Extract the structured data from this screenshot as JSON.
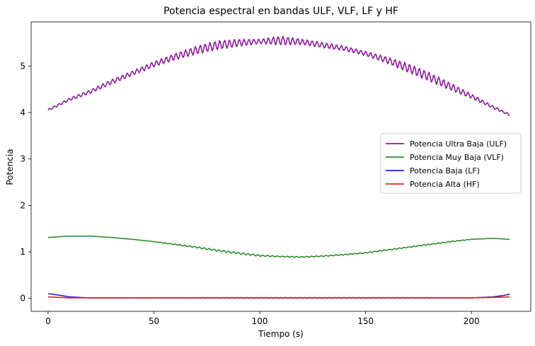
{
  "chart_data": {
    "type": "line",
    "title": "Potencia espectral en bandas ULF, VLF, LF y HF",
    "xlabel": "Tiempo (s)",
    "ylabel": "Potencia",
    "xlim": [
      -8,
      228
    ],
    "ylim": [
      -0.28,
      5.95
    ],
    "xticks": [
      0,
      50,
      100,
      150,
      200
    ],
    "yticks": [
      0,
      1,
      2,
      3,
      4,
      5
    ],
    "grid": false,
    "legend_position": "center-right",
    "series": [
      {
        "name": "Potencia Ultra Baja (ULF)",
        "color": "#8B1A9B",
        "x": [
          0,
          10,
          20,
          30,
          40,
          50,
          60,
          70,
          80,
          90,
          100,
          110,
          120,
          130,
          140,
          150,
          160,
          170,
          180,
          190,
          200,
          210,
          218
        ],
        "y": [
          4.05,
          4.28,
          4.45,
          4.66,
          4.85,
          5.04,
          5.2,
          5.34,
          5.45,
          5.5,
          5.53,
          5.55,
          5.52,
          5.45,
          5.38,
          5.27,
          5.13,
          4.96,
          4.77,
          4.56,
          4.35,
          4.12,
          3.95
        ],
        "oscillation": [
          0.02,
          0.03,
          0.04,
          0.05,
          0.05,
          0.06,
          0.07,
          0.09,
          0.1,
          0.08,
          0.05,
          0.1,
          0.06,
          0.06,
          0.05,
          0.05,
          0.07,
          0.1,
          0.1,
          0.08,
          0.05,
          0.03,
          0.02
        ]
      },
      {
        "name": "Potencia Muy Baja (VLF)",
        "color": "#2E8B2E",
        "x": [
          0,
          10,
          20,
          30,
          40,
          50,
          60,
          70,
          80,
          90,
          100,
          110,
          120,
          130,
          140,
          150,
          160,
          170,
          180,
          190,
          200,
          210,
          218
        ],
        "y": [
          1.31,
          1.34,
          1.34,
          1.31,
          1.27,
          1.22,
          1.16,
          1.1,
          1.03,
          0.97,
          0.92,
          0.9,
          0.89,
          0.91,
          0.94,
          0.98,
          1.04,
          1.1,
          1.16,
          1.22,
          1.27,
          1.29,
          1.27
        ],
        "oscillation": [
          0.0,
          0.0,
          0.0,
          0.0,
          0.0,
          0.005,
          0.01,
          0.015,
          0.02,
          0.02,
          0.015,
          0.01,
          0.01,
          0.01,
          0.01,
          0.01,
          0.01,
          0.01,
          0.01,
          0.01,
          0.005,
          0.0,
          0.0
        ]
      },
      {
        "name": "Potencia Baja (LF)",
        "color": "#1A1AE6",
        "x": [
          0,
          5,
          10,
          20,
          50,
          100,
          150,
          200,
          210,
          215,
          218
        ],
        "y": [
          0.1,
          0.07,
          0.03,
          0.01,
          0.01,
          0.01,
          0.01,
          0.01,
          0.03,
          0.06,
          0.09
        ],
        "oscillation": [
          0,
          0,
          0,
          0,
          0,
          0,
          0,
          0,
          0,
          0,
          0
        ]
      },
      {
        "name": "Potencia Alta (HF)",
        "color": "#E62020",
        "x": [
          0,
          5,
          10,
          20,
          50,
          100,
          150,
          200,
          210,
          218
        ],
        "y": [
          0.03,
          0.02,
          0.01,
          0.01,
          0.01,
          0.01,
          0.01,
          0.01,
          0.02,
          0.03
        ],
        "oscillation": [
          0,
          0,
          0,
          0,
          0.005,
          0.01,
          0.01,
          0.005,
          0,
          0
        ]
      }
    ]
  }
}
